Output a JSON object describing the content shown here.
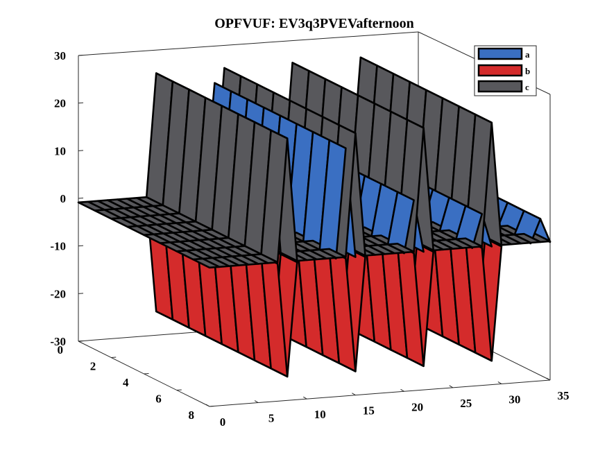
{
  "chart_data": {
    "type": "surface3d",
    "title": "OPFVUF: EV3q3PVEVafternoon",
    "xlabel": "",
    "ylabel": "",
    "zlabel": "",
    "x_ticks": [
      "0",
      "5",
      "10",
      "15",
      "20",
      "25",
      "30",
      "35"
    ],
    "y_ticks": [
      "0",
      "2",
      "4",
      "6",
      "8"
    ],
    "z_ticks": [
      "-30",
      "-20",
      "-10",
      "0",
      "10",
      "20",
      "30"
    ],
    "xlim": [
      0,
      35
    ],
    "ylim": [
      0,
      8
    ],
    "zlim": [
      -30,
      30
    ],
    "legend_position": "top-right",
    "series": [
      {
        "name": "a",
        "color": "#3a6fc2",
        "spikes": [
          {
            "x": 14,
            "z": 22
          },
          {
            "x": 21,
            "z": 10
          },
          {
            "x": 28,
            "z": 6
          },
          {
            "x": 34,
            "z": 4
          }
        ]
      },
      {
        "name": "b",
        "color": "#d42b2b",
        "spikes": [
          {
            "x": 8,
            "z": -25
          },
          {
            "x": 15,
            "z": -25
          },
          {
            "x": 22,
            "z": -25
          },
          {
            "x": 29,
            "z": -25
          }
        ]
      },
      {
        "name": "c",
        "color": "#58585c",
        "spikes": [
          {
            "x": 8,
            "z": 25
          },
          {
            "x": 15,
            "z": 25
          },
          {
            "x": 22,
            "z": 25
          },
          {
            "x": 29,
            "z": 25
          }
        ]
      }
    ]
  }
}
